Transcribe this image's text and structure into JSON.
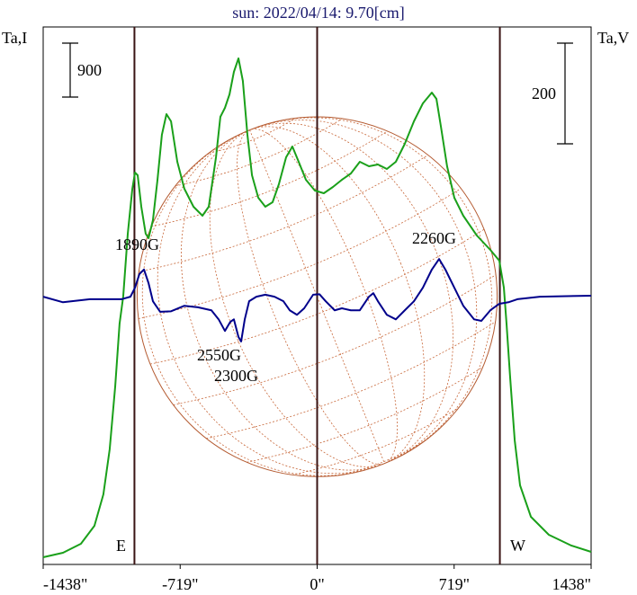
{
  "chart_data": {
    "type": "line",
    "title": "sun: 2022/04/14: 9.70[cm]",
    "y_label": "Ta,I",
    "y2_label": "Ta,V",
    "xlim": [
      -1438,
      1438
    ],
    "xticks": [
      {
        "value": -1438,
        "label": "-1438\""
      },
      {
        "value": -719,
        "label": "-719\""
      },
      {
        "value": 0,
        "label": "0\""
      },
      {
        "value": 719,
        "label": "719\""
      },
      {
        "value": 1438,
        "label": "1438\""
      }
    ],
    "ylim": [
      -120,
      8850
    ],
    "y2lim": [
      -532,
      536
    ],
    "scale_bars": [
      {
        "value": 900,
        "axis": "y"
      },
      {
        "value": 200,
        "axis": "y2"
      }
    ],
    "vlines": [
      -959,
      0,
      959
    ],
    "disk_radius": 945,
    "annotations": [
      "1890G",
      "2260G",
      "2550G",
      "2300G",
      "E",
      "W"
    ],
    "series": [
      {
        "name": "Ta,I",
        "color": "#1aa01a",
        "axis": "y",
        "x": [
          -1438,
          -1334,
          -1240,
          -1169,
          -1122,
          -1089,
          -1060,
          -1037,
          -1018,
          -994,
          -970,
          -956,
          -942,
          -923,
          -900,
          -885,
          -862,
          -838,
          -815,
          -791,
          -767,
          -734,
          -697,
          -649,
          -602,
          -569,
          -531,
          -508,
          -484,
          -460,
          -437,
          -413,
          -390,
          -366,
          -342,
          -309,
          -272,
          -234,
          -201,
          -163,
          -130,
          -97,
          -59,
          -12,
          35,
          83,
          130,
          177,
          224,
          272,
          319,
          366,
          413,
          460,
          508,
          555,
          602,
          626,
          649,
          682,
          720,
          767,
          838,
          909,
          956,
          980,
          994,
          1013,
          1037,
          1065,
          1122,
          1216,
          1334,
          1438
        ],
        "values": [
          0,
          75,
          225,
          525,
          1050,
          1800,
          2850,
          3900,
          4350,
          5400,
          6150,
          6420,
          6375,
          5850,
          5400,
          5325,
          5625,
          6300,
          7050,
          7395,
          7275,
          6600,
          6150,
          5850,
          5700,
          5850,
          6675,
          7350,
          7500,
          7725,
          8100,
          8325,
          7950,
          7050,
          6375,
          6000,
          5850,
          5925,
          6225,
          6675,
          6855,
          6600,
          6300,
          6120,
          6075,
          6180,
          6300,
          6405,
          6600,
          6525,
          6555,
          6480,
          6600,
          6900,
          7275,
          7575,
          7755,
          7650,
          7200,
          6525,
          6000,
          5700,
          5370,
          5130,
          4950,
          4500,
          3900,
          3000,
          1950,
          1200,
          675,
          375,
          195,
          90
        ]
      },
      {
        "name": "Ta,V",
        "color": "#00008b",
        "axis": "y2",
        "x": [
          -1438,
          -1334,
          -1192,
          -1027,
          -980,
          -956,
          -933,
          -909,
          -885,
          -862,
          -824,
          -767,
          -697,
          -626,
          -555,
          -517,
          -484,
          -456,
          -437,
          -413,
          -399,
          -380,
          -357,
          -319,
          -272,
          -224,
          -177,
          -144,
          -106,
          -68,
          -21,
          12,
          45,
          92,
          130,
          177,
          224,
          272,
          295,
          319,
          366,
          413,
          460,
          508,
          555,
          602,
          640,
          673,
          720,
          767,
          824,
          862,
          909,
          956,
          1004,
          1051,
          1169,
          1438
        ],
        "values": [
          0,
          -11,
          -5,
          -5,
          0,
          18,
          45,
          54,
          27,
          -9,
          -30,
          -29,
          -18,
          -21,
          -27,
          -45,
          -68,
          -50,
          -45,
          -80,
          -89,
          -45,
          -9,
          0,
          4,
          0,
          -9,
          -27,
          -36,
          -23,
          4,
          5,
          -9,
          -27,
          -23,
          -27,
          -27,
          0,
          7,
          -9,
          -36,
          -45,
          -27,
          -9,
          18,
          54,
          75,
          54,
          18,
          -18,
          -45,
          -48,
          -27,
          -14,
          -11,
          -5,
          0,
          2
        ]
      }
    ]
  }
}
